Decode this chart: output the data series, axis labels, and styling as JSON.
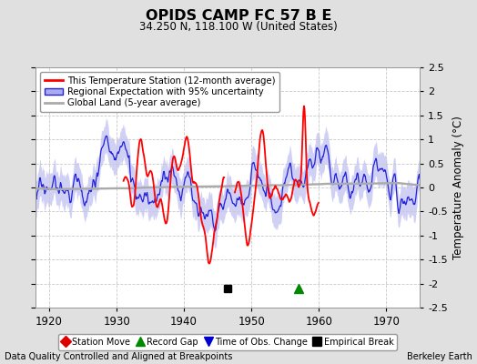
{
  "title": "OPIDS CAMP FC 57 B E",
  "subtitle": "34.250 N, 118.100 W (United States)",
  "ylabel": "Temperature Anomaly (°C)",
  "footer_left": "Data Quality Controlled and Aligned at Breakpoints",
  "footer_right": "Berkeley Earth",
  "xlim": [
    1918,
    1975
  ],
  "ylim": [
    -2.5,
    2.5
  ],
  "yticks": [
    -2.5,
    -2,
    -1.5,
    -1,
    -0.5,
    0,
    0.5,
    1,
    1.5,
    2,
    2.5
  ],
  "xticks": [
    1920,
    1930,
    1940,
    1950,
    1960,
    1970
  ],
  "bg_color": "#e0e0e0",
  "plot_bg_color": "#ffffff",
  "red_color": "#ff0000",
  "blue_color": "#2222dd",
  "blue_fill_color": "#aaaaee",
  "gray_color": "#aaaaaa",
  "legend_labels": [
    "This Temperature Station (12-month average)",
    "Regional Expectation with 95% uncertainty",
    "Global Land (5-year average)"
  ],
  "marker_legend": [
    {
      "label": "Station Move",
      "color": "#dd0000",
      "marker": "D"
    },
    {
      "label": "Record Gap",
      "color": "#008800",
      "marker": "^"
    },
    {
      "label": "Time of Obs. Change",
      "color": "#0000cc",
      "marker": "v"
    },
    {
      "label": "Empirical Break",
      "color": "#000000",
      "marker": "s"
    }
  ],
  "empirical_break_x": 1946.5,
  "record_gap_x": 1957.0,
  "marker_y": -2.1,
  "red_start": 1931.0,
  "red_end": 1960.0,
  "red_gap_start": 1946.0,
  "red_gap_end": 1947.5,
  "seed": 17
}
